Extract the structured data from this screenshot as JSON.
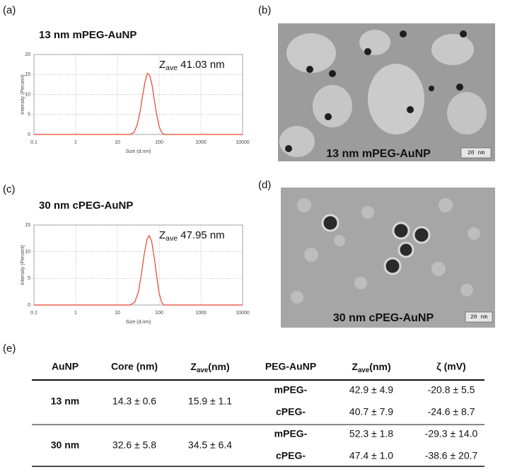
{
  "panels": {
    "a": "(a)",
    "b": "(b)",
    "c": "(c)",
    "d": "(d)",
    "e": "(e)"
  },
  "chart_data": [
    {
      "type": "line",
      "title": "13 nm mPEG-AuNP",
      "annotation": {
        "symbol": "Z",
        "subscript": "ave",
        "text": "41.03 nm"
      },
      "x_label": "Size (d.nm)",
      "y_label": "Intensity (Percent)",
      "log_x": true,
      "grid": true,
      "xlim": [
        0.1,
        10000
      ],
      "xticks": [
        0.1,
        1,
        10,
        100,
        1000,
        10000
      ],
      "ylim": [
        0,
        20
      ],
      "yticks": [
        0,
        5,
        10,
        15,
        20
      ],
      "series": [
        {
          "color": "#e8412c",
          "x": [
            0.1,
            0.4,
            1,
            4,
            10,
            20,
            25,
            30,
            35,
            40,
            46,
            52,
            59,
            67,
            76,
            87,
            100,
            115,
            130,
            200,
            1000,
            10000
          ],
          "values": [
            0,
            0,
            0,
            0,
            0,
            0,
            0.5,
            2.5,
            5.8,
            9.6,
            13.2,
            15.3,
            14.9,
            12.6,
            8.9,
            5,
            2,
            0.5,
            0,
            0,
            0,
            0
          ]
        }
      ]
    },
    {
      "type": "line",
      "title": "30 nm cPEG-AuNP",
      "annotation": {
        "symbol": "Z",
        "subscript": "ave",
        "text": "47.95 nm"
      },
      "x_label": "Size (d.nm)",
      "y_label": "Intensity (Percent)",
      "log_x": true,
      "grid": true,
      "xlim": [
        0.1,
        10000
      ],
      "xticks": [
        0.1,
        1,
        10,
        100,
        1000,
        10000
      ],
      "ylim": [
        0,
        15
      ],
      "yticks": [
        0,
        5,
        10,
        15
      ],
      "series": [
        {
          "color": "#e8412c",
          "x": [
            0.1,
            0.4,
            1,
            4,
            10,
            20,
            26,
            32,
            38,
            44,
            51,
            58,
            66,
            76,
            87,
            100,
            115,
            130,
            200,
            1000,
            10000
          ],
          "values": [
            0,
            0,
            0,
            0,
            0,
            0,
            0.5,
            2.5,
            6,
            9.6,
            12.3,
            13,
            12,
            9,
            5.5,
            2.2,
            0.5,
            0,
            0,
            0,
            0
          ]
        }
      ]
    }
  ],
  "images": [
    {
      "caption": "13 nm mPEG-AuNP",
      "scale_bar": "20 nm"
    },
    {
      "caption": "30 nm cPEG-AuNP",
      "scale_bar": "20 nm"
    }
  ],
  "table": {
    "header": {
      "aunp": "AuNP",
      "core": "Core (nm)",
      "zave": {
        "symbol": "Z",
        "subscript": "ave",
        "unit": "(nm)"
      },
      "peg": "PEG-AuNP",
      "zave2": {
        "symbol": "Z",
        "subscript": "ave",
        "unit": "(nm)"
      },
      "zeta": "ζ (mV)"
    },
    "rows": [
      {
        "group": "13 nm",
        "core": "14.3 ± 0.6",
        "zave": "15.9 ± 1.1",
        "sub": [
          {
            "peg": "mPEG-",
            "zave": "42.9 ± 4.9",
            "zeta": "-20.8 ± 5.5"
          },
          {
            "peg": "cPEG-",
            "zave": "40.7 ± 7.9",
            "zeta": "-24.6 ± 8.7"
          }
        ]
      },
      {
        "group": "30 nm",
        "core": "32.6 ± 5.8",
        "zave": "34.5 ± 6.4",
        "sub": [
          {
            "peg": "mPEG-",
            "zave": "52.3 ± 1.8",
            "zeta": "-29.3 ± 14.0"
          },
          {
            "peg": "cPEG-",
            "zave": "47.4 ± 1.0",
            "zeta": "-38.6 ± 20.7"
          }
        ]
      }
    ]
  }
}
